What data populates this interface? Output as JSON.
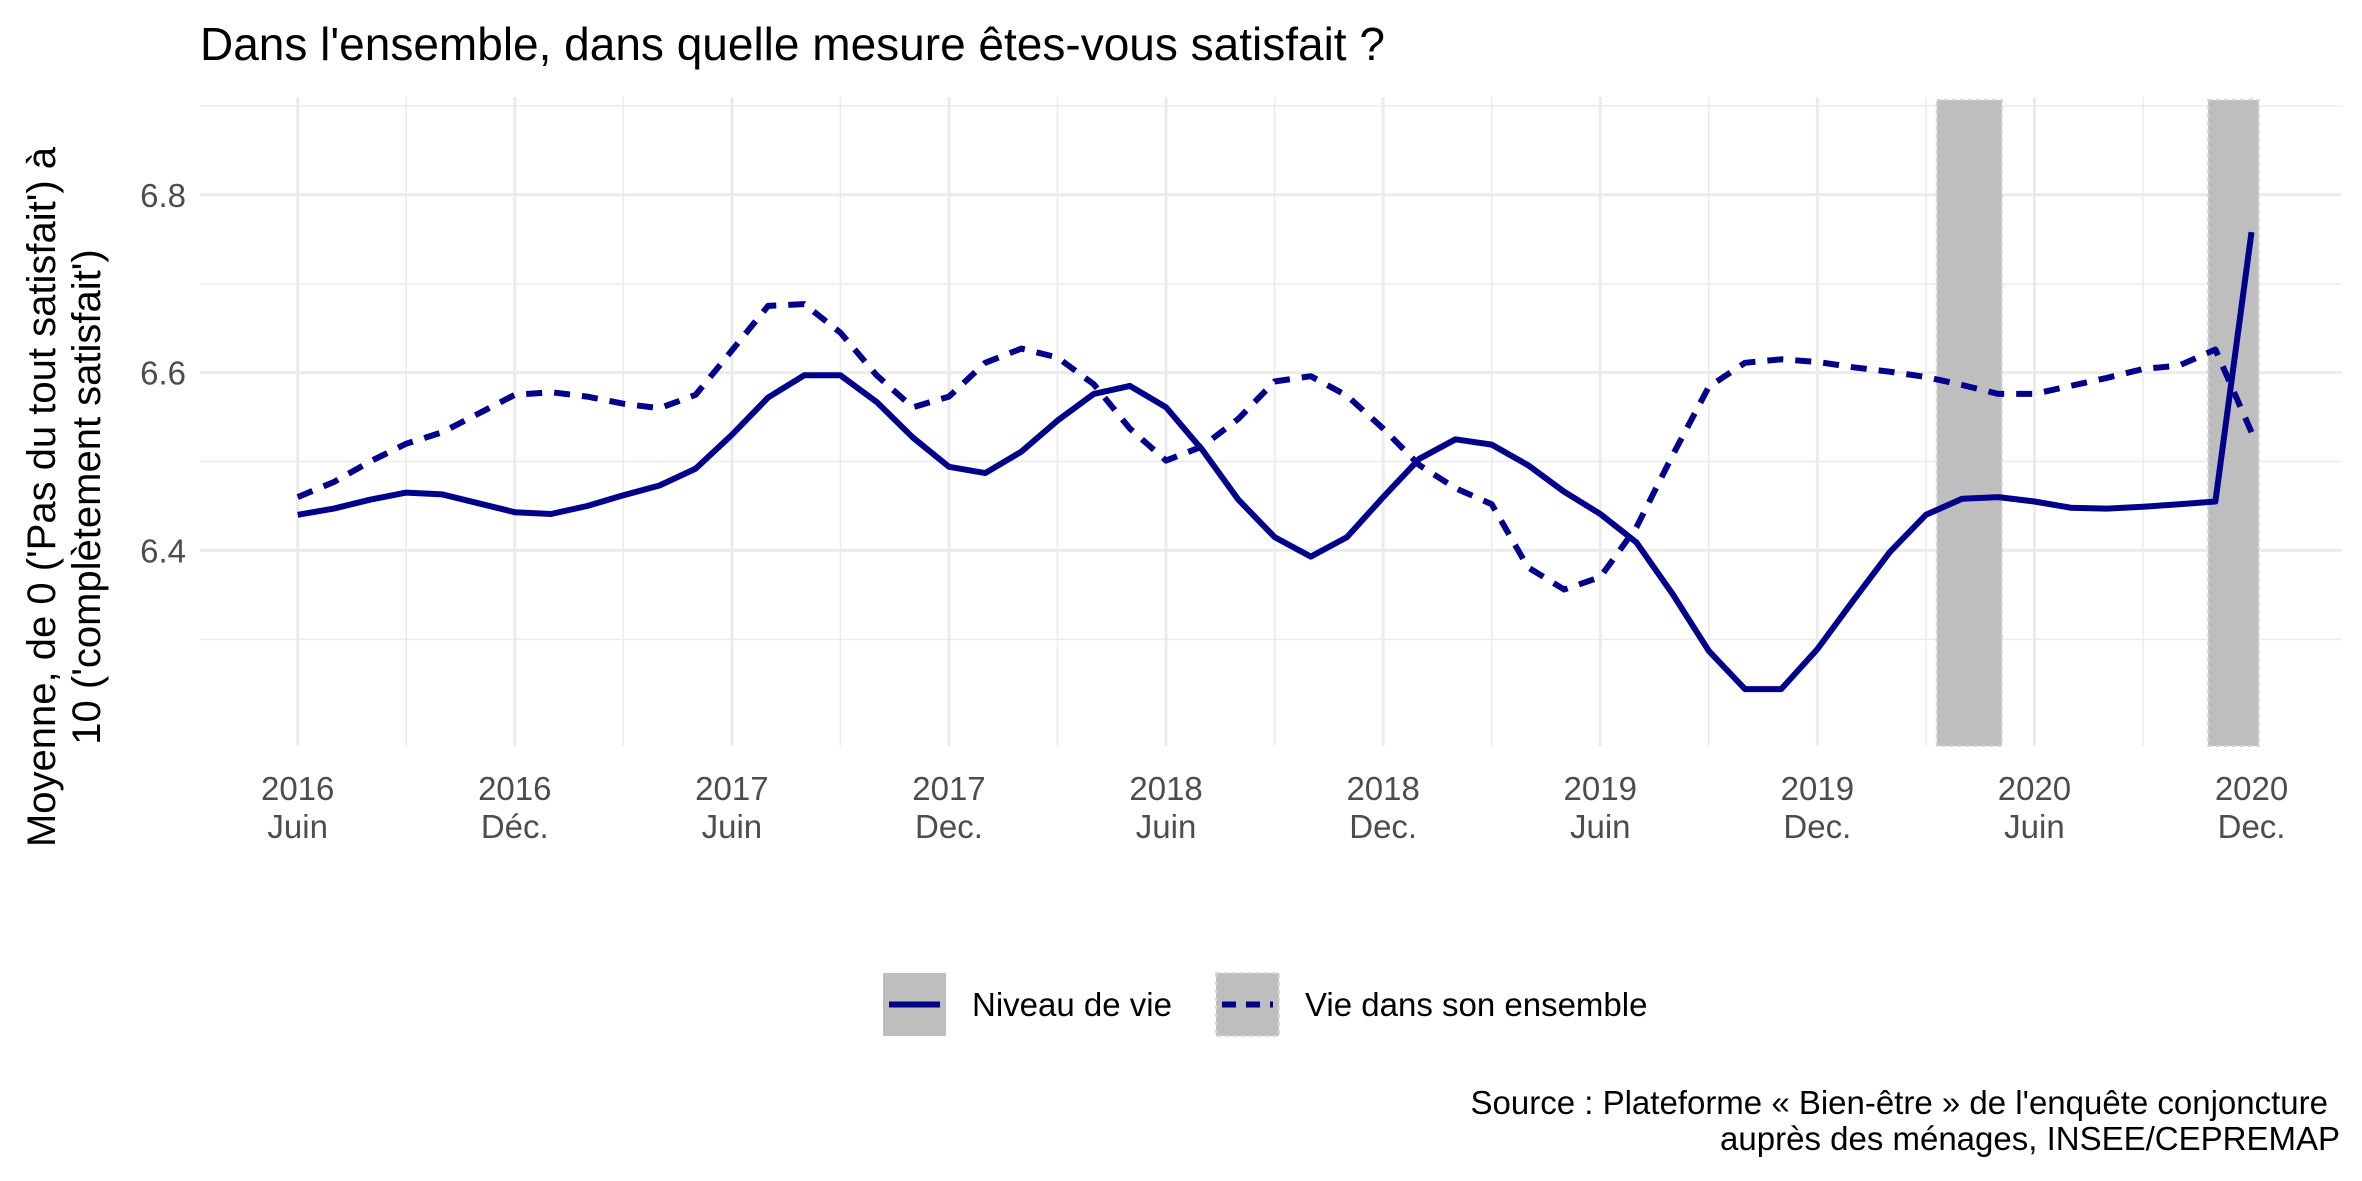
{
  "chart_data": {
    "type": "line",
    "title": "Dans l'ensemble, dans quelle mesure êtes-vous satisfait  ?",
    "ylabel_lines": [
      "Moyenne, de 0 ('Pas du tout satisfait') à",
      "10 ('complètement satisfait')"
    ],
    "caption_lines": [
      "Source : Plateforme « Bien-être » de l'enquête conjoncture",
      "auprès des ménages, INSEE/CEPREMAP"
    ],
    "ylim": [
      6.18,
      6.91
    ],
    "yticks": [
      6.4,
      6.6,
      6.8
    ],
    "x_ticks": [
      {
        "index": 0,
        "line1": "2016",
        "line2": "Juin"
      },
      {
        "index": 6,
        "line1": "2016",
        "line2": "Déc."
      },
      {
        "index": 12,
        "line1": "2017",
        "line2": "Juin"
      },
      {
        "index": 18,
        "line1": "2017",
        "line2": "Dec."
      },
      {
        "index": 24,
        "line1": "2018",
        "line2": "Juin"
      },
      {
        "index": 30,
        "line1": "2018",
        "line2": "Dec."
      },
      {
        "index": 36,
        "line1": "2019",
        "line2": "Juin"
      },
      {
        "index": 42,
        "line1": "2019",
        "line2": "Dec."
      },
      {
        "index": 48,
        "line1": "2020",
        "line2": "Juin"
      },
      {
        "index": 54,
        "line1": "2020",
        "line2": "Dec."
      }
    ],
    "x_range": [
      -2.7,
      56.5
    ],
    "shaded_periods": [
      [
        45.3,
        47.1
      ],
      [
        52.8,
        54.2
      ]
    ],
    "grid": true,
    "legend_position": "bottom",
    "series": [
      {
        "name": "Niveau de vie",
        "style": "solid",
        "color": "#00008B",
        "x": [
          0,
          1,
          2,
          3,
          4,
          5,
          6,
          7,
          8,
          9,
          10,
          11,
          12,
          13,
          14,
          15,
          16,
          17,
          18,
          19,
          20,
          21,
          22,
          23,
          24,
          25,
          26,
          27,
          28,
          29,
          30,
          31,
          32,
          33,
          34,
          35,
          36,
          37,
          38,
          39,
          40,
          41,
          42,
          43,
          44,
          45,
          46,
          47,
          48,
          49,
          50,
          51,
          52,
          53,
          54
        ],
        "values": [
          6.44,
          6.447,
          6.457,
          6.465,
          6.463,
          6.453,
          6.443,
          6.441,
          6.45,
          6.462,
          6.473,
          6.492,
          6.53,
          6.572,
          6.597,
          6.597,
          6.567,
          6.527,
          6.494,
          6.487,
          6.511,
          6.546,
          6.576,
          6.585,
          6.561,
          6.513,
          6.457,
          6.415,
          6.393,
          6.415,
          6.46,
          6.503,
          6.525,
          6.519,
          6.496,
          6.466,
          6.441,
          6.409,
          6.351,
          6.287,
          6.244,
          6.244,
          6.289,
          6.344,
          6.398,
          6.44,
          6.458,
          6.46,
          6.455,
          6.448,
          6.447,
          6.449,
          6.452,
          6.455,
          6.758
        ]
      },
      {
        "name": "Vie dans son ensemble",
        "style": "dashed",
        "color": "#00008B",
        "x": [
          0,
          1,
          2,
          3,
          4,
          5,
          6,
          7,
          8,
          9,
          10,
          11,
          12,
          13,
          14,
          15,
          16,
          17,
          18,
          19,
          20,
          21,
          22,
          23,
          24,
          25,
          26,
          27,
          28,
          29,
          30,
          31,
          32,
          33,
          34,
          35,
          36,
          37,
          38,
          39,
          40,
          41,
          42,
          43,
          44,
          45,
          46,
          47,
          48,
          49,
          50,
          51,
          52,
          53,
          54
        ],
        "values": [
          6.46,
          6.477,
          6.5,
          6.52,
          6.533,
          6.554,
          6.575,
          6.578,
          6.573,
          6.565,
          6.56,
          6.575,
          6.625,
          6.675,
          6.677,
          6.645,
          6.597,
          6.561,
          6.573,
          6.611,
          6.627,
          6.617,
          6.587,
          6.537,
          6.501,
          6.517,
          6.548,
          6.59,
          6.596,
          6.574,
          6.537,
          6.496,
          6.47,
          6.452,
          6.381,
          6.356,
          6.37,
          6.426,
          6.507,
          6.584,
          6.611,
          6.615,
          6.612,
          6.606,
          6.601,
          6.595,
          6.586,
          6.576,
          6.576,
          6.585,
          6.594,
          6.604,
          6.608,
          6.626,
          6.533
        ]
      }
    ]
  }
}
